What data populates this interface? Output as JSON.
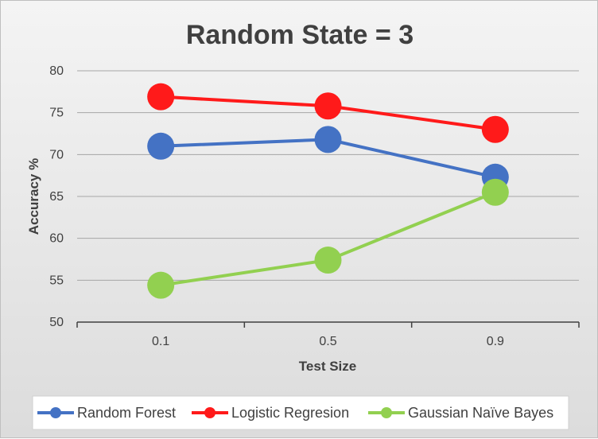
{
  "chart_data": {
    "type": "line",
    "title": "Random State = 3",
    "xlabel": "Test Size",
    "ylabel": "Accuracy %",
    "categories": [
      "0.1",
      "0.5",
      "0.9"
    ],
    "ylim": [
      50,
      80
    ],
    "yticks": [
      50,
      55,
      60,
      65,
      70,
      75,
      80
    ],
    "grid": true,
    "legend_position": "bottom",
    "series": [
      {
        "name": "Random Forest",
        "color": "#4472c4",
        "values": [
          71.0,
          71.8,
          67.3
        ]
      },
      {
        "name": "Logistic Regresion",
        "color": "#ff1a1a",
        "values": [
          76.9,
          75.8,
          73.0
        ]
      },
      {
        "name": "Gaussian Naïve Bayes",
        "color": "#92d050",
        "values": [
          54.4,
          57.4,
          65.5
        ]
      }
    ]
  }
}
